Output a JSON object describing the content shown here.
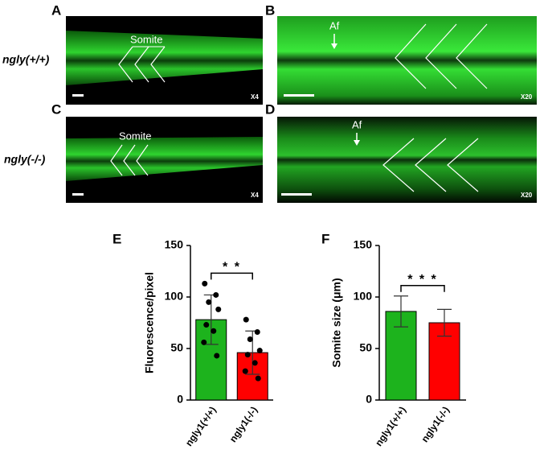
{
  "figure": {
    "panels": [
      {
        "label": "A",
        "annotation": "Somite",
        "magnification": "X4"
      },
      {
        "label": "B",
        "annotation": "Af",
        "magnification": "X20"
      },
      {
        "label": "C",
        "annotation": "Somite",
        "magnification": "X4"
      },
      {
        "label": "D",
        "annotation": "Af",
        "magnification": "X20"
      }
    ],
    "row_labels": [
      "ngly(+/+)",
      "ngly(-/-)"
    ]
  },
  "chart_data": [
    {
      "type": "bar",
      "panel_label": "E",
      "y_label": "Fluorescence/pixel",
      "categories": [
        "ngly1(+/+)",
        "ngly1(-/-)"
      ],
      "values": [
        78,
        46
      ],
      "errors": [
        24,
        21
      ],
      "colors": [
        "#1db31d",
        "#ff0000"
      ],
      "points": [
        [
          113,
          102,
          95,
          88,
          73,
          67,
          56,
          43
        ],
        [
          78,
          66,
          59,
          48,
          44,
          36,
          28,
          21
        ]
      ],
      "significance": "* *",
      "ylim": [
        0,
        150
      ],
      "yticks": [
        0,
        50,
        100,
        150
      ]
    },
    {
      "type": "bar",
      "panel_label": "F",
      "y_label": "Somite size (μm)",
      "categories": [
        "ngly1(+/+)",
        "ngly1(-/-)"
      ],
      "values": [
        86,
        75
      ],
      "errors": [
        15,
        13
      ],
      "colors": [
        "#1db31d",
        "#ff0000"
      ],
      "significance": "* * *",
      "ylim": [
        0,
        150
      ],
      "yticks": [
        0,
        50,
        100,
        150
      ]
    }
  ]
}
